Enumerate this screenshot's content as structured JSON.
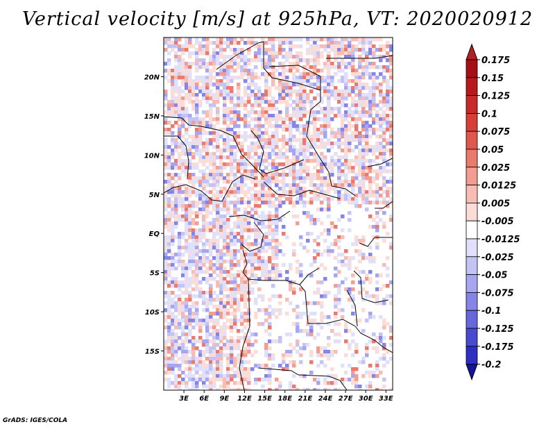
{
  "title": "Vertical velocity [m/s] at 925hPa, VT: 2020020912",
  "credit": "GrADS: IGES/COLA",
  "map": {
    "lon_range": [
      0,
      34
    ],
    "lat_range": [
      -20,
      25
    ],
    "lat_ticks": [
      {
        "value": 20,
        "label": "20N"
      },
      {
        "value": 15,
        "label": "15N"
      },
      {
        "value": 10,
        "label": "10N"
      },
      {
        "value": 5,
        "label": "5N"
      },
      {
        "value": 0,
        "label": "EQ"
      },
      {
        "value": -5,
        "label": "5S"
      },
      {
        "value": -10,
        "label": "10S"
      },
      {
        "value": -15,
        "label": "15S"
      }
    ],
    "lon_ticks": [
      {
        "value": 3,
        "label": "3E"
      },
      {
        "value": 6,
        "label": "6E"
      },
      {
        "value": 9,
        "label": "9E"
      },
      {
        "value": 12,
        "label": "12E"
      },
      {
        "value": 15,
        "label": "15E"
      },
      {
        "value": 18,
        "label": "18E"
      },
      {
        "value": 21,
        "label": "21E"
      },
      {
        "value": 24,
        "label": "24E"
      },
      {
        "value": 27,
        "label": "27E"
      },
      {
        "value": 30,
        "label": "30E"
      },
      {
        "value": 33,
        "label": "33E"
      }
    ]
  },
  "colorbar": {
    "levels": [
      {
        "label": "0.175",
        "color": "#a50f15"
      },
      {
        "label": "0.15",
        "color": "#b7191c"
      },
      {
        "label": "0.125",
        "color": "#c72a28"
      },
      {
        "label": "0.1",
        "color": "#d63e37"
      },
      {
        "label": "0.075",
        "color": "#e0574d"
      },
      {
        "label": "0.05",
        "color": "#e87a6e"
      },
      {
        "label": "0.025",
        "color": "#f29c92"
      },
      {
        "label": "0.0125",
        "color": "#f7bcb4"
      },
      {
        "label": "0.005",
        "color": "#fbdcd7"
      },
      {
        "label": "-0.005",
        "color": "#ffffff"
      },
      {
        "label": "-0.0125",
        "color": "#e0e0fb"
      },
      {
        "label": "-0.025",
        "color": "#c3c3f6"
      },
      {
        "label": "-0.05",
        "color": "#a5a5f0"
      },
      {
        "label": "-0.075",
        "color": "#8585e7"
      },
      {
        "label": "-0.1",
        "color": "#6767dc"
      },
      {
        "label": "-0.125",
        "color": "#4a4ad0"
      },
      {
        "label": "-0.175",
        "color": "#2e2ec0"
      },
      {
        "label": "-0.2",
        "color": "#1a1aa8"
      }
    ],
    "top_color": "#b22222",
    "bottom_color": "#1414a0"
  }
}
